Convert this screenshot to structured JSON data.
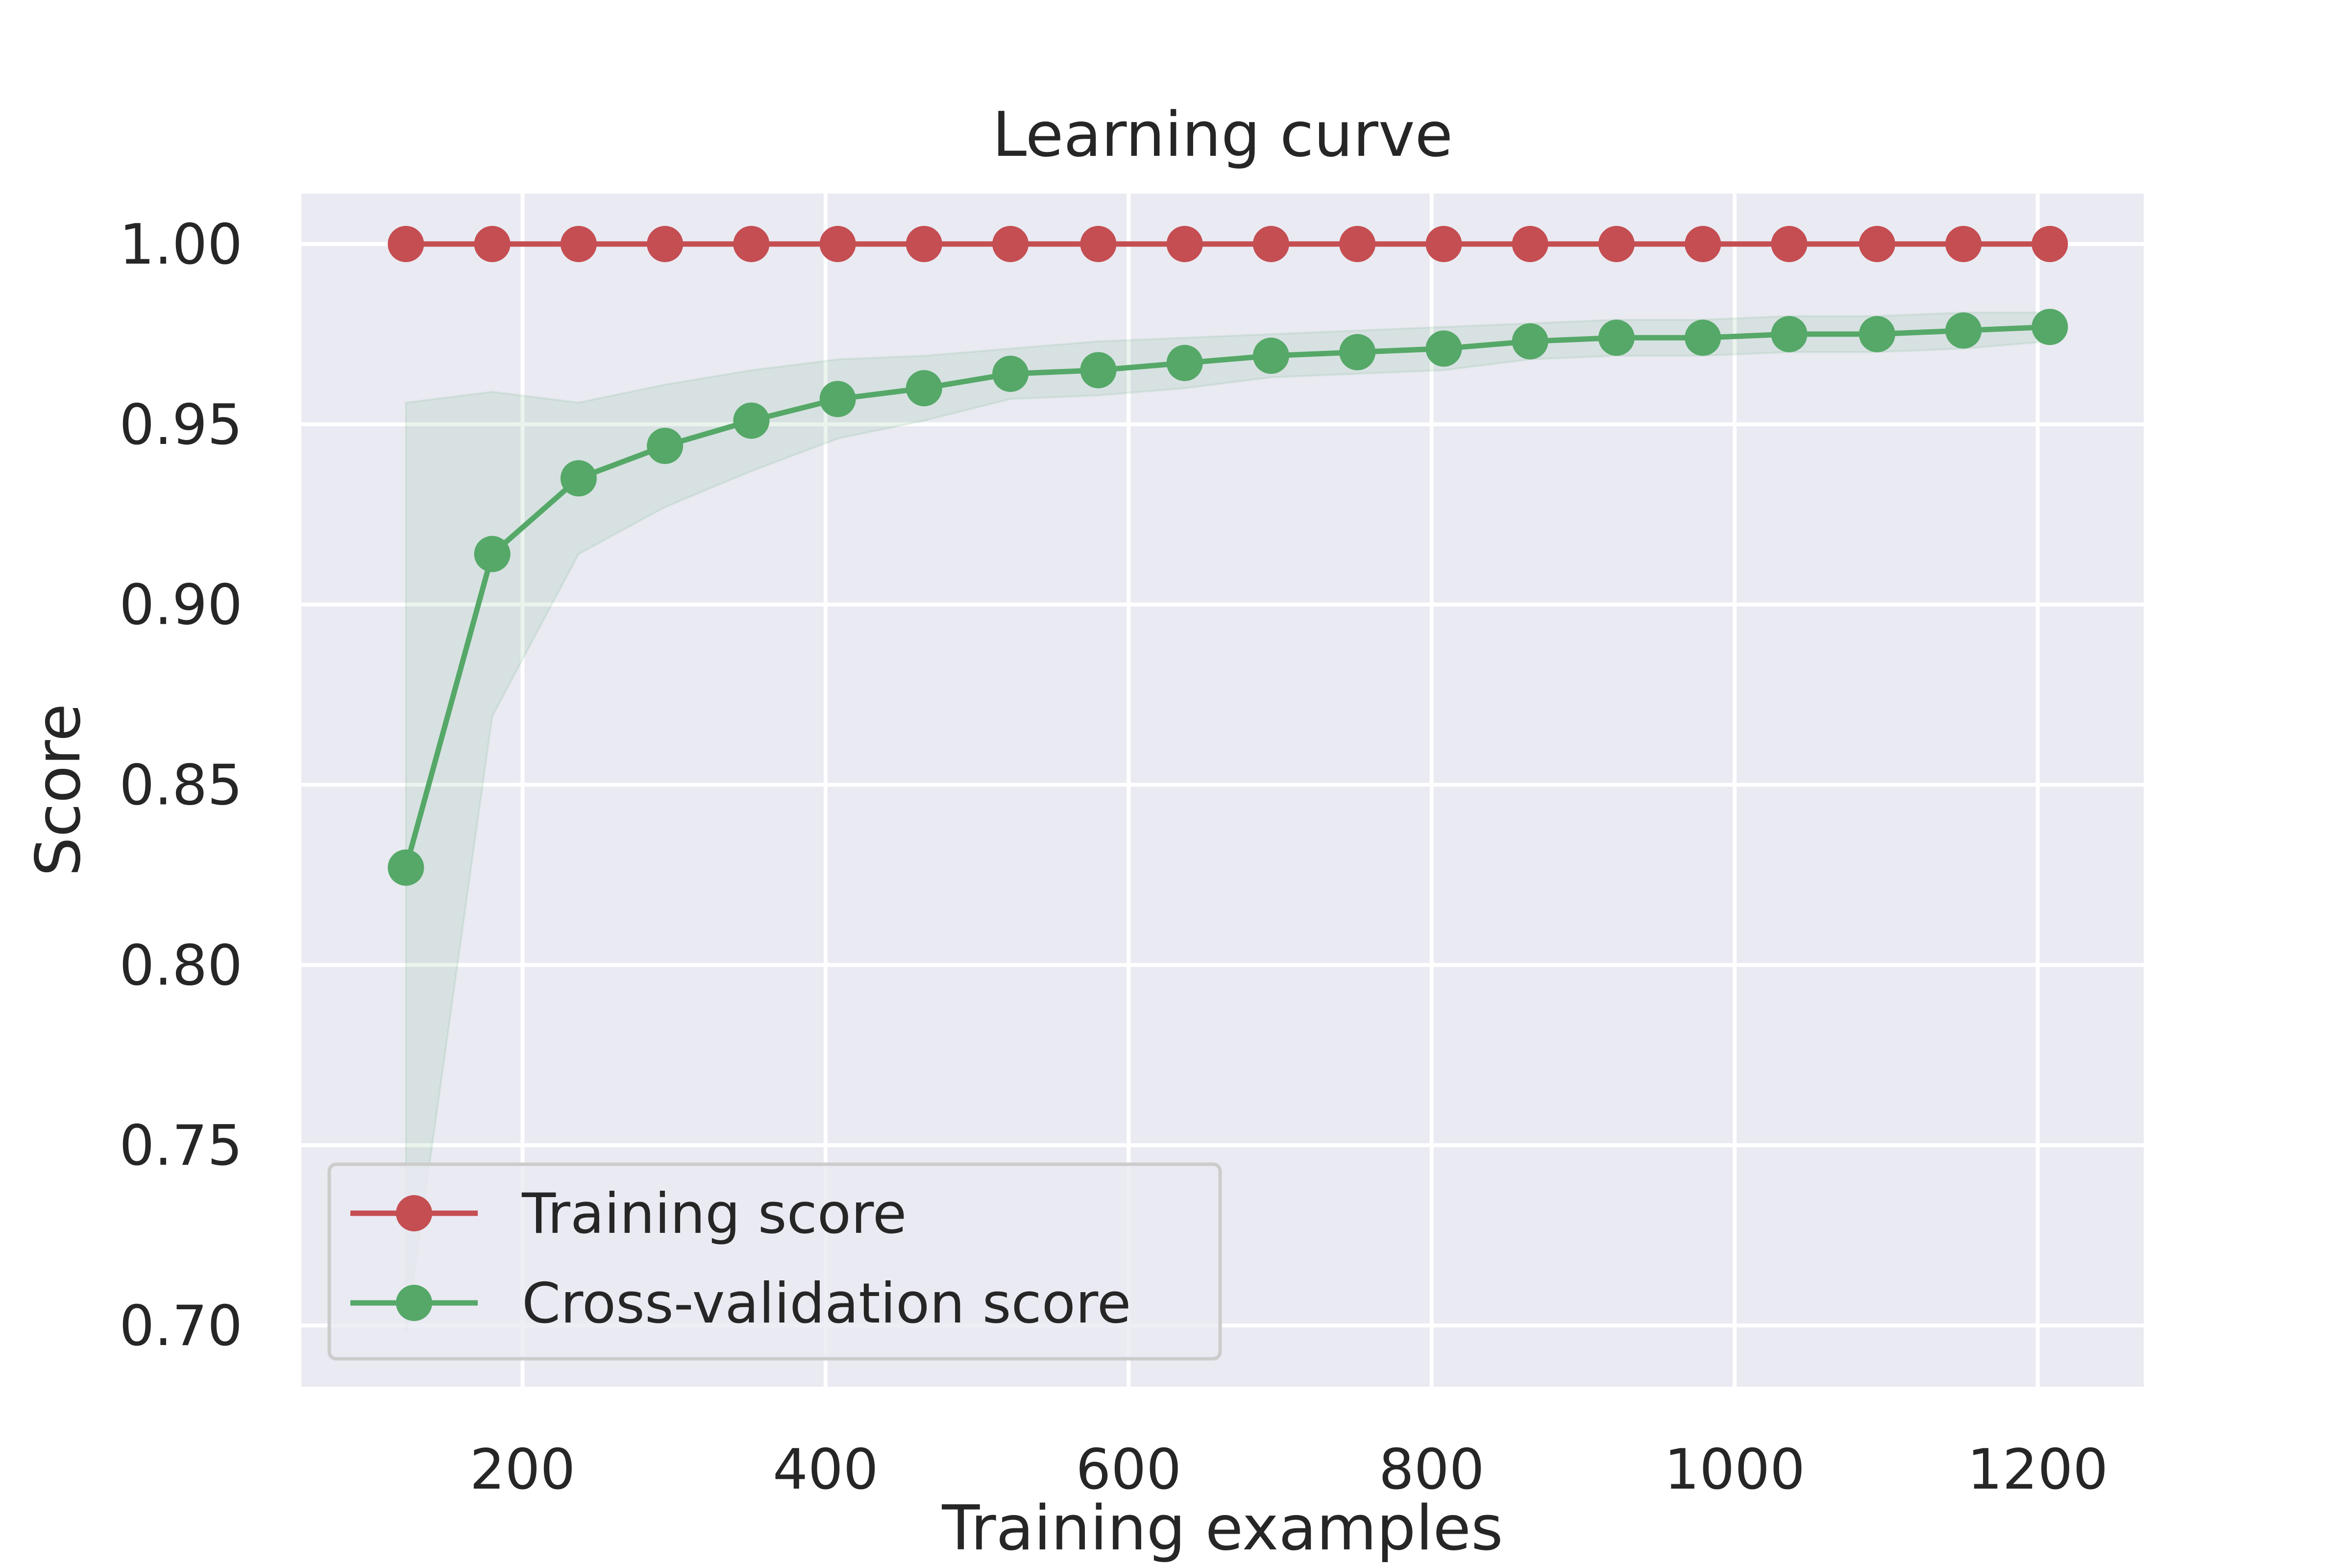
{
  "chart_data": {
    "type": "line",
    "title": "Learning curve",
    "xlabel": "Training examples",
    "ylabel": "Score",
    "xlim": [
      54,
      1270
    ],
    "ylim": [
      0.683,
      1.014
    ],
    "xticks": [
      200,
      400,
      600,
      800,
      1000,
      1200
    ],
    "xtick_labels": [
      "200",
      "400",
      "600",
      "800",
      "1000",
      "1200"
    ],
    "yticks": [
      0.7,
      0.75,
      0.8,
      0.85,
      0.9,
      0.95,
      1.0
    ],
    "ytick_labels": [
      "0.70",
      "0.75",
      "0.80",
      "0.85",
      "0.90",
      "0.95",
      "1.00"
    ],
    "grid": true,
    "legend_position": "lower-left",
    "x": [
      123,
      180,
      237,
      294,
      351,
      408,
      465,
      522,
      580,
      637,
      694,
      751,
      808,
      865,
      922,
      979,
      1036,
      1094,
      1151,
      1208
    ],
    "series": [
      {
        "name": "Training score",
        "color": "#c44e52",
        "values": [
          1.0,
          1.0,
          1.0,
          1.0,
          1.0,
          1.0,
          1.0,
          1.0,
          1.0,
          1.0,
          1.0,
          1.0,
          1.0,
          1.0,
          1.0,
          1.0,
          1.0,
          1.0,
          1.0,
          1.0
        ]
      },
      {
        "name": "Cross-validation score",
        "color": "#55a868",
        "values": [
          0.827,
          0.914,
          0.935,
          0.944,
          0.951,
          0.957,
          0.96,
          0.964,
          0.965,
          0.967,
          0.969,
          0.97,
          0.971,
          0.973,
          0.974,
          0.974,
          0.975,
          0.975,
          0.976,
          0.977
        ],
        "band_upper": [
          0.956,
          0.959,
          0.956,
          0.961,
          0.965,
          0.968,
          0.969,
          0.971,
          0.973,
          0.974,
          0.975,
          0.976,
          0.977,
          0.978,
          0.979,
          0.979,
          0.98,
          0.98,
          0.981,
          0.981
        ],
        "band_lower": [
          0.698,
          0.869,
          0.914,
          0.927,
          0.937,
          0.946,
          0.951,
          0.957,
          0.958,
          0.96,
          0.963,
          0.964,
          0.965,
          0.968,
          0.969,
          0.969,
          0.97,
          0.97,
          0.971,
          0.973
        ]
      }
    ]
  }
}
